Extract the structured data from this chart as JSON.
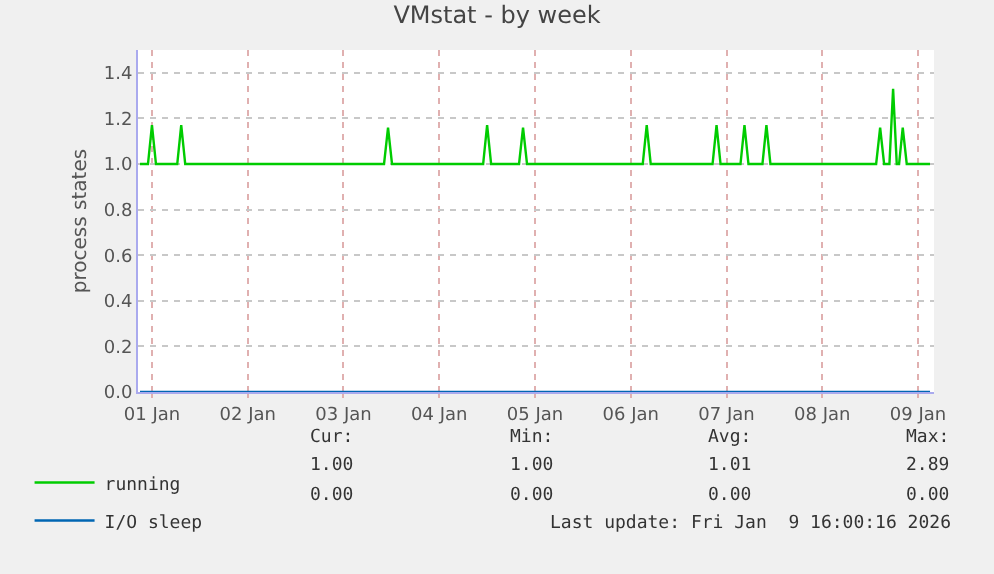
{
  "chart_data": {
    "type": "line",
    "title": "VMstat - by week",
    "ylabel": "process states",
    "x": [
      "2025-12-31T21:00",
      "2025-12-31T23:00",
      "2026-01-01T00:00",
      "2026-01-01T01:00",
      "2026-01-01T06:20",
      "2026-01-01T07:20",
      "2026-01-01T08:20",
      "2026-01-03T10:10",
      "2026-01-03T11:10",
      "2026-01-03T12:10",
      "2026-01-04T11:00",
      "2026-01-04T12:00",
      "2026-01-04T13:00",
      "2026-01-04T20:00",
      "2026-01-04T21:00",
      "2026-01-04T22:00",
      "2026-01-06T03:00",
      "2026-01-06T04:00",
      "2026-01-06T05:00",
      "2026-01-06T20:30",
      "2026-01-06T21:30",
      "2026-01-06T22:30",
      "2026-01-07T03:30",
      "2026-01-07T04:30",
      "2026-01-07T05:30",
      "2026-01-07T09:00",
      "2026-01-07T10:00",
      "2026-01-07T11:00",
      "2026-01-08T13:30",
      "2026-01-08T14:30",
      "2026-01-08T15:30",
      "2026-01-08T16:50",
      "2026-01-08T17:45",
      "2026-01-08T18:40",
      "2026-01-08T19:15",
      "2026-01-08T20:10",
      "2026-01-08T21:10",
      "2026-01-09T03:00"
    ],
    "series": [
      {
        "name": "running",
        "color": "#00cc00",
        "values": [
          1.0,
          1.0,
          1.17,
          1.0,
          1.0,
          1.17,
          1.0,
          1.0,
          1.16,
          1.0,
          1.0,
          1.17,
          1.0,
          1.0,
          1.16,
          1.0,
          1.0,
          1.17,
          1.0,
          1.0,
          1.17,
          1.0,
          1.0,
          1.17,
          1.0,
          1.0,
          1.17,
          1.0,
          1.0,
          1.16,
          1.0,
          1.0,
          1.33,
          1.0,
          1.0,
          1.16,
          1.0,
          1.0
        ]
      },
      {
        "name": "I/O sleep",
        "color": "#0066b3",
        "x": [
          "2025-12-31T21:00",
          "2026-01-09T03:00"
        ],
        "values": [
          0.0,
          0.0
        ]
      }
    ],
    "xlim": [
      "2025-12-31T20:30",
      "2026-01-09T04:00"
    ],
    "xticks": [
      {
        "value": "2026-01-01",
        "label": "01 Jan"
      },
      {
        "value": "2026-01-02",
        "label": "02 Jan"
      },
      {
        "value": "2026-01-03",
        "label": "03 Jan"
      },
      {
        "value": "2026-01-04",
        "label": "04 Jan"
      },
      {
        "value": "2026-01-05",
        "label": "05 Jan"
      },
      {
        "value": "2026-01-06",
        "label": "06 Jan"
      },
      {
        "value": "2026-01-07",
        "label": "07 Jan"
      },
      {
        "value": "2026-01-08",
        "label": "08 Jan"
      },
      {
        "value": "2026-01-09",
        "label": "09 Jan"
      }
    ],
    "ylim": [
      0,
      1.5
    ],
    "yticks": [
      {
        "value": 0,
        "label": "0.0"
      },
      {
        "value": 0.2,
        "label": "0.2"
      },
      {
        "value": 0.4,
        "label": "0.4"
      },
      {
        "value": 0.6,
        "label": "0.6"
      },
      {
        "value": 0.8,
        "label": "0.8"
      },
      {
        "value": 1.0,
        "label": "1.0"
      },
      {
        "value": 1.2,
        "label": "1.2"
      },
      {
        "value": 1.4,
        "label": "1.4"
      }
    ],
    "grid": true,
    "legend": "bottom left",
    "marker": "none",
    "line_style": "solid",
    "annotations": [
      "Cur:",
      "Min:",
      "Avg:",
      "Max:",
      "1.00",
      "1.00",
      "1.01",
      "2.89",
      "0.00",
      "0.00",
      "0.00",
      "0.00",
      "Last update: Fri Jan  9 16:00:16 2026"
    ]
  }
}
